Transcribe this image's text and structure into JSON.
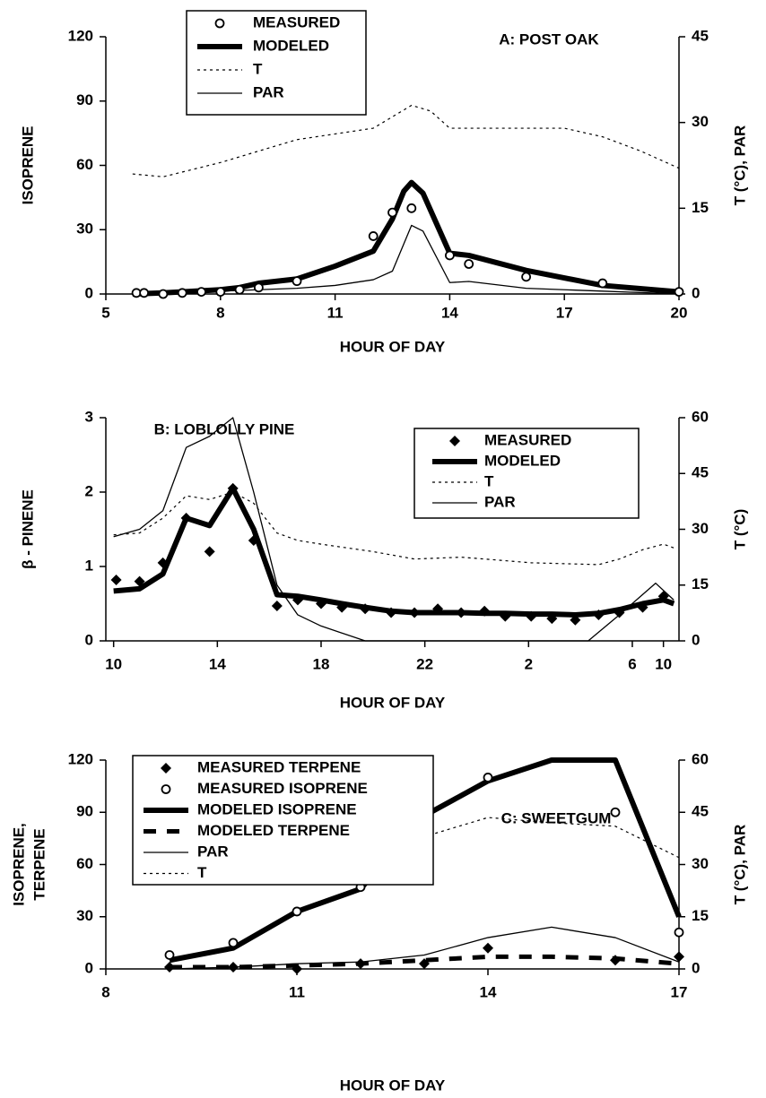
{
  "chart_data": [
    {
      "type": "line",
      "title": "A: POST OAK",
      "xlabel": "HOUR OF DAY",
      "ylabel": "ISOPRENE",
      "y2label": "T (°C), PAR",
      "xlim": [
        5,
        20
      ],
      "xticks": [
        5,
        8,
        11,
        14,
        17,
        20
      ],
      "ylim": [
        0,
        120
      ],
      "yticks": [
        0,
        30,
        60,
        90,
        120
      ],
      "y2lim": [
        0,
        45
      ],
      "y2ticks": [
        0,
        15,
        30,
        45
      ],
      "series": [
        {
          "name": "MEASURED",
          "style": "circle",
          "color": "#000",
          "x": [
            5.8,
            6.0,
            6.5,
            7,
            7.5,
            8,
            8.5,
            9,
            10,
            12,
            12.5,
            13,
            14,
            14.5,
            16,
            18,
            20
          ],
          "values": [
            0.5,
            0.5,
            0,
            0.5,
            1,
            1,
            2,
            3,
            6,
            27,
            38,
            40,
            18,
            14,
            8,
            5,
            1
          ]
        },
        {
          "name": "MODELED",
          "style": "thick",
          "color": "#000",
          "x": [
            5.7,
            6.5,
            8,
            8.5,
            9,
            10,
            11,
            12,
            12.5,
            12.8,
            13,
            13.3,
            14,
            14.5,
            16,
            18,
            20
          ],
          "values": [
            0,
            0.5,
            2,
            3,
            5,
            7,
            13,
            20,
            35,
            48,
            52,
            47,
            19,
            18,
            11,
            4,
            1
          ]
        },
        {
          "name": "T",
          "style": "dotted",
          "color": "#000",
          "axis": "y2",
          "x": [
            5.7,
            6.5,
            8,
            9,
            10,
            11,
            12,
            12.5,
            13,
            13.5,
            14,
            15,
            16,
            17,
            18,
            19,
            20
          ],
          "values": [
            21,
            20.5,
            23,
            25,
            27,
            28,
            29,
            31,
            33,
            32,
            29,
            29,
            29,
            29,
            27.5,
            25,
            22
          ]
        },
        {
          "name": "PAR",
          "style": "thin",
          "color": "#000",
          "axis": "y2",
          "x": [
            5.7,
            8,
            10,
            11,
            12,
            12.5,
            13,
            13.3,
            14,
            14.5,
            16,
            18,
            20
          ],
          "values": [
            0,
            0.5,
            1,
            1.5,
            2.5,
            4,
            12,
            11,
            2,
            2.2,
            1,
            0.5,
            0
          ]
        }
      ]
    },
    {
      "type": "line",
      "title": "B: LOBLOLLY PINE",
      "xlabel": "HOUR OF DAY",
      "ylabel": "β - PINENE",
      "y2label": "T (°C)",
      "xlim": [
        9.7,
        31.8
      ],
      "xticks": [
        10,
        14,
        18,
        22,
        {
          "value": 26,
          "label": "2"
        },
        {
          "value": 30,
          "label": "6"
        },
        {
          "value": 31.2,
          "label": "10"
        }
      ],
      "ylim": [
        0,
        3
      ],
      "yticks": [
        0,
        1,
        2,
        3
      ],
      "y2lim": [
        0,
        60
      ],
      "y2ticks": [
        0,
        15,
        30,
        45,
        60
      ],
      "series": [
        {
          "name": "MEASURED",
          "style": "diamond",
          "color": "#000",
          "x": [
            10.1,
            11.0,
            11.9,
            12.8,
            13.7,
            14.6,
            15.4,
            16.3,
            17.1,
            18.0,
            18.8,
            19.7,
            20.7,
            21.6,
            22.5,
            23.4,
            24.3,
            25.1,
            26.1,
            26.9,
            27.8,
            28.7,
            29.5,
            30.4,
            31.2
          ],
          "values": [
            0.82,
            0.8,
            1.05,
            1.65,
            1.2,
            2.05,
            1.35,
            0.47,
            0.55,
            0.5,
            0.45,
            0.43,
            0.38,
            0.38,
            0.43,
            0.38,
            0.4,
            0.33,
            0.33,
            0.3,
            0.28,
            0.35,
            0.38,
            0.45,
            0.6
          ]
        },
        {
          "name": "MODELED",
          "style": "thick",
          "color": "#000",
          "x": [
            10.0,
            11.0,
            11.9,
            12.8,
            13.7,
            14.6,
            15.4,
            16.3,
            17.1,
            18.0,
            18.8,
            19.7,
            20.7,
            21.6,
            22.5,
            23.4,
            24.3,
            25.1,
            26.1,
            26.9,
            27.8,
            28.7,
            29.5,
            30.4,
            31.2,
            31.6
          ],
          "values": [
            0.67,
            0.7,
            0.9,
            1.65,
            1.55,
            2.05,
            1.5,
            0.62,
            0.6,
            0.55,
            0.5,
            0.45,
            0.4,
            0.38,
            0.38,
            0.38,
            0.37,
            0.37,
            0.36,
            0.36,
            0.35,
            0.37,
            0.42,
            0.5,
            0.55,
            0.5
          ]
        },
        {
          "name": "T",
          "style": "dotted",
          "color": "#000",
          "axis": "y2",
          "x": [
            10.0,
            11.0,
            11.9,
            12.8,
            13.7,
            14.6,
            15.4,
            16.3,
            17.1,
            18.0,
            20.0,
            21.6,
            23.4,
            26.1,
            28.7,
            29.5,
            30.4,
            31.2,
            31.6
          ],
          "values": [
            28.5,
            29,
            33,
            39,
            38,
            40,
            37,
            29,
            27,
            26,
            24,
            22,
            22.5,
            21,
            20.5,
            22,
            24.5,
            26,
            25
          ]
        },
        {
          "name": "PAR",
          "style": "thin",
          "color": "#000",
          "axis": "y2",
          "x": [
            10.0,
            11.0,
            11.9,
            12.8,
            13.7,
            14.6,
            15.4,
            16.3,
            17.1,
            18.0,
            19.7,
            28.3,
            29.5,
            30.9,
            31.6
          ],
          "values": [
            28,
            30,
            35,
            52,
            55,
            60,
            40,
            15,
            7,
            4,
            0,
            0,
            7,
            15.5,
            11
          ]
        }
      ]
    },
    {
      "type": "line",
      "title": "C: SWEETGUM",
      "xlabel": "HOUR OF DAY",
      "ylabel": [
        "ISOPRENE,",
        "TERPENE"
      ],
      "y2label": "T (°C), PAR",
      "xlim": [
        8,
        17
      ],
      "xticks": [
        8,
        11,
        14,
        17
      ],
      "ylim": [
        0,
        120
      ],
      "yticks": [
        0,
        30,
        60,
        90,
        120
      ],
      "y2lim": [
        0,
        60
      ],
      "y2ticks": [
        0,
        15,
        30,
        45,
        60
      ],
      "series": [
        {
          "name": "MEASURED TERPENE",
          "style": "diamond",
          "color": "#000",
          "x": [
            9,
            10,
            11,
            12,
            13,
            14,
            16,
            17
          ],
          "values": [
            1,
            1,
            0,
            3,
            3,
            12,
            5,
            7
          ]
        },
        {
          "name": "MEASURED ISOPRENE",
          "style": "circle",
          "color": "#000",
          "x": [
            9,
            10,
            11,
            12,
            13,
            14,
            16,
            17
          ],
          "values": [
            8,
            15,
            33,
            47,
            77,
            110,
            90,
            21
          ]
        },
        {
          "name": "MODELED ISOPRENE",
          "style": "thick",
          "color": "#000",
          "x": [
            9,
            10,
            11,
            12,
            13,
            14,
            15,
            16,
            17
          ],
          "values": [
            5,
            12,
            33,
            46,
            88,
            108,
            120,
            120,
            30
          ]
        },
        {
          "name": "MODELED TERPENE",
          "style": "dashed",
          "color": "#000",
          "x": [
            9,
            10,
            11,
            12,
            13,
            14,
            15,
            16,
            17
          ],
          "values": [
            1,
            1,
            2,
            3,
            5,
            7,
            7,
            6,
            3
          ]
        },
        {
          "name": "PAR",
          "style": "thin",
          "color": "#000",
          "axis": "y2",
          "x": [
            9,
            10,
            11,
            12,
            13,
            14,
            15,
            16,
            17
          ],
          "values": [
            0,
            0.5,
            1.5,
            2,
            4,
            9,
            12,
            9,
            2
          ]
        },
        {
          "name": "T",
          "style": "dotted",
          "color": "#000",
          "axis": "y2",
          "x": [
            9,
            10,
            11,
            12,
            13,
            14,
            15,
            16,
            17
          ],
          "values": [
            26,
            28,
            32,
            34,
            38,
            43.5,
            42,
            41,
            32
          ]
        }
      ]
    }
  ]
}
